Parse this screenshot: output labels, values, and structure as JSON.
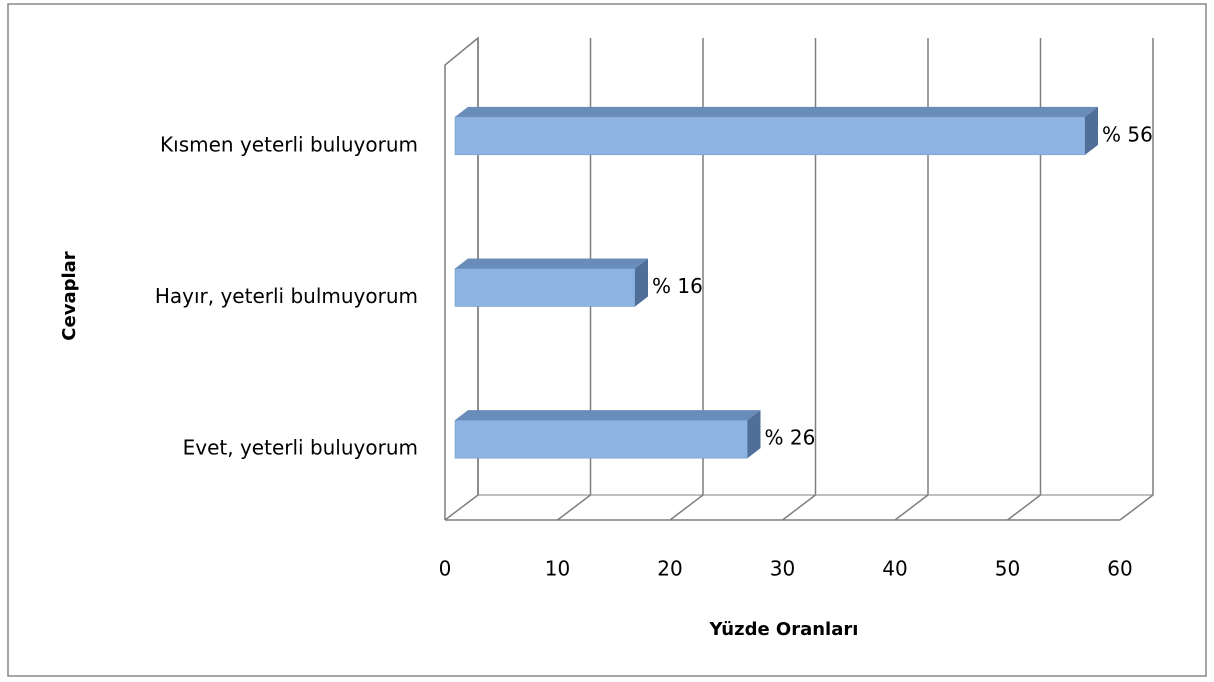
{
  "chart_data": {
    "type": "bar3d_horizontal",
    "categories": [
      "Evet, yeterli buluyorum",
      "Hayır, yeterli bulmuyorum",
      "Kısmen yeterli buluyorum"
    ],
    "values": [
      26,
      16,
      56
    ],
    "value_labels": [
      "% 26",
      "% 16",
      "% 56"
    ],
    "color": "#8db3e2",
    "xlim": [
      0,
      60
    ],
    "xticks": [
      0,
      10,
      20,
      30,
      40,
      50,
      60
    ],
    "xlabel": "Yüzde Oranları",
    "ylabel": "Cevaplar",
    "grid": true
  }
}
